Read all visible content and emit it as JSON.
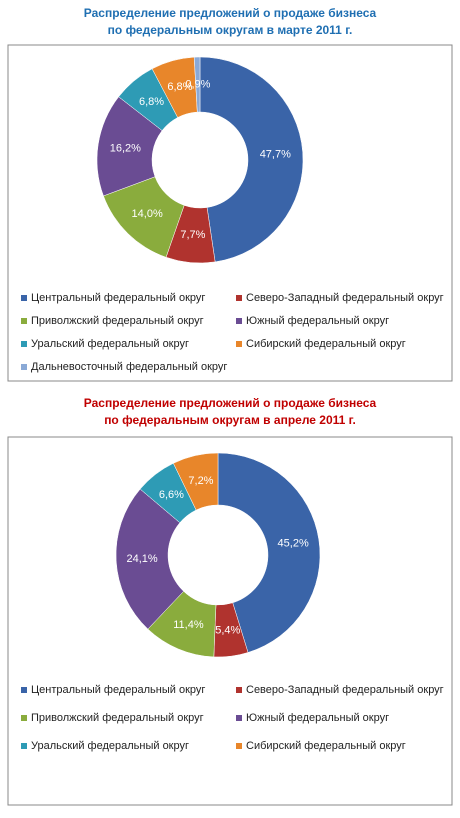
{
  "chart_data": [
    {
      "type": "donut",
      "title": [
        "Распределение предложений о продаже бизнеса",
        "по федеральным округам в  марте 2011 г."
      ],
      "title_color": "#1f6fb2",
      "categories": [
        "Центральный федеральный округ",
        "Северо-Западный федеральный округ",
        "Приволжский федеральный округ",
        "Южный федеральный округ",
        "Уральский федеральный округ",
        "Сибирский федеральный округ",
        "Дальневосточный федеральный округ"
      ],
      "values": [
        47.7,
        7.7,
        14.0,
        16.2,
        6.8,
        6.8,
        0.9
      ],
      "value_labels": [
        "47,7%",
        "7,7%",
        "14,0%",
        "16,2%",
        "6,8%",
        "6,8%",
        "0,9%"
      ],
      "colors": [
        "#3a64a8",
        "#b0332e",
        "#8aac3d",
        "#6a4c93",
        "#2e9bb5",
        "#e8862a",
        "#8aa9d6"
      ]
    },
    {
      "type": "donut",
      "title": [
        "Распределение предложений о продаже бизнеса",
        "по федеральным округам в  апреле 2011 г."
      ],
      "title_color": "#c00000",
      "categories": [
        "Центральный федеральный округ",
        "Северо-Западный федеральный округ",
        "Приволжский федеральный округ",
        "Южный федеральный округ",
        "Уральский федеральный округ",
        "Сибирский федеральный округ"
      ],
      "values": [
        45.2,
        5.4,
        11.4,
        24.1,
        6.6,
        7.2
      ],
      "value_labels": [
        "45,2%",
        "5,4%",
        "11,4%",
        "24,1%",
        "6,6%",
        "7,2%"
      ],
      "colors": [
        "#3a64a8",
        "#b0332e",
        "#8aac3d",
        "#6a4c93",
        "#2e9bb5",
        "#e8862a"
      ]
    }
  ]
}
